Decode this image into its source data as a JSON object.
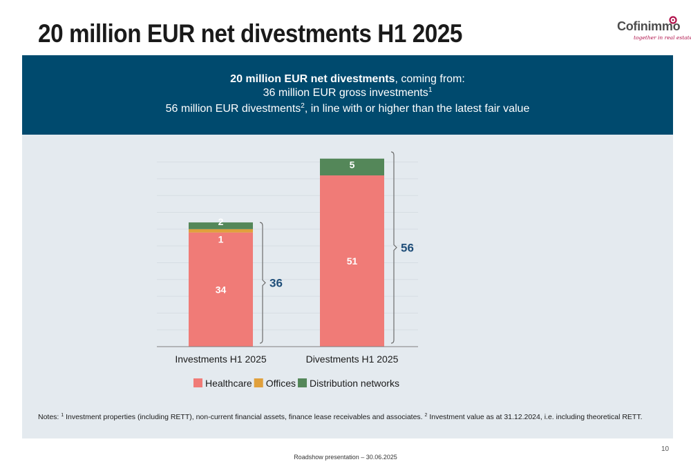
{
  "title": "20 million EUR net divestments H1 2025",
  "logo": {
    "name": "Cofinimmo",
    "tagline": "together in real estate",
    "accent": "#b0114a"
  },
  "banner": {
    "line1_bold": "20 million EUR net divestments",
    "line1_rest": ", coming from:",
    "line2_text": "36 million EUR gross investments",
    "line2_sup": "1",
    "line3_text": "56 million EUR divestments",
    "line3_sup": "2",
    "line3_rest": ", in line with or higher than the latest fair value",
    "bg_color": "#004a6e"
  },
  "chart_data": {
    "type": "bar",
    "stacked": true,
    "categories": [
      "Investments H1 2025",
      "Divestments H1 2025"
    ],
    "series": [
      {
        "name": "Healthcare",
        "values": [
          34,
          51
        ],
        "color": "#f07b77"
      },
      {
        "name": "Offices",
        "values": [
          1,
          0
        ],
        "color": "#e0a03c"
      },
      {
        "name": "Distribution networks",
        "values": [
          2,
          5
        ],
        "color": "#548759"
      }
    ],
    "data_labels": [
      [
        "34",
        "1",
        "2"
      ],
      [
        "51",
        "",
        "5"
      ]
    ],
    "totals": [
      "36",
      "56"
    ],
    "ylim": [
      0,
      58
    ],
    "legend_position": "bottom",
    "grid": true
  },
  "notes": {
    "prefix": "Notes: ",
    "sup1": "1",
    "text1": " Investment properties (including RETT), non-current financial assets, finance lease receivables and associates. ",
    "sup2": "2",
    "text2": " Investment value as at 31.12.2024, i.e. including theoretical RETT."
  },
  "page_number": "10",
  "footer": "Roadshow presentation – 30.06.2025"
}
